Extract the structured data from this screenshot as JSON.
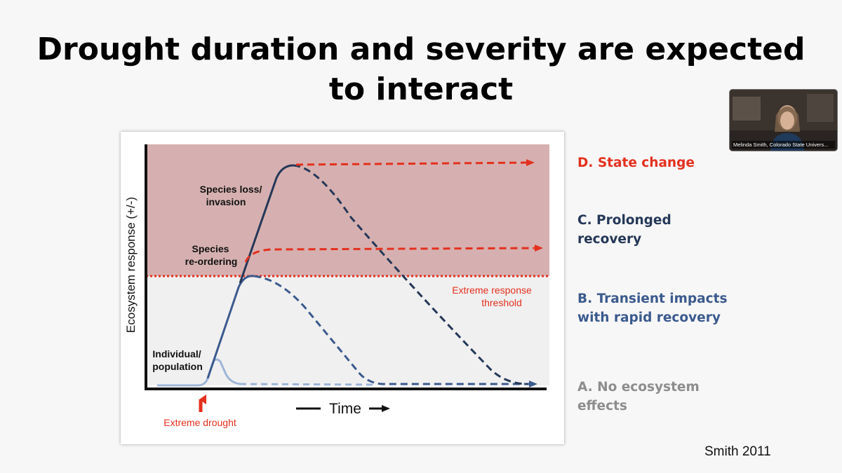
{
  "slide": {
    "title_line1": "Drought duration and severity are expected",
    "title_line2": "to interact",
    "citation": "Smith 2011"
  },
  "video": {
    "participant_name": "Melinda Smith, Colorado State Univers..."
  },
  "figure": {
    "ylabel": "Ecosystem response (+/-)",
    "xlabel": "Time",
    "threshold_label_line1": "Extreme response",
    "threshold_label_line2": "threshold",
    "drought_label": "Extreme drought",
    "annotations": {
      "species_loss_line1": "Species loss/",
      "species_loss_line2": "invasion",
      "species_reorder_line1": "Species",
      "species_reorder_line2": "re-ordering",
      "individual_line1": "Individual/",
      "individual_line2": "population"
    }
  },
  "legend": {
    "d": {
      "line1": "D. State change",
      "color": "#e4301e"
    },
    "c": {
      "line1": "C. Prolonged",
      "line2": "recovery",
      "color": "#253858"
    },
    "b": {
      "line1": "B. Transient impacts",
      "line2": "with rapid recovery",
      "color": "#3b5a8e"
    },
    "a": {
      "line1": "A. No ecosystem",
      "line2": "effects",
      "color": "#8d8d8d"
    }
  },
  "colors": {
    "extreme_zone": "#d6b0b0",
    "threshold": "#e4301e",
    "navy": "#253858",
    "blue": "#3b5a8e",
    "light_blue": "#9db5d6"
  }
}
